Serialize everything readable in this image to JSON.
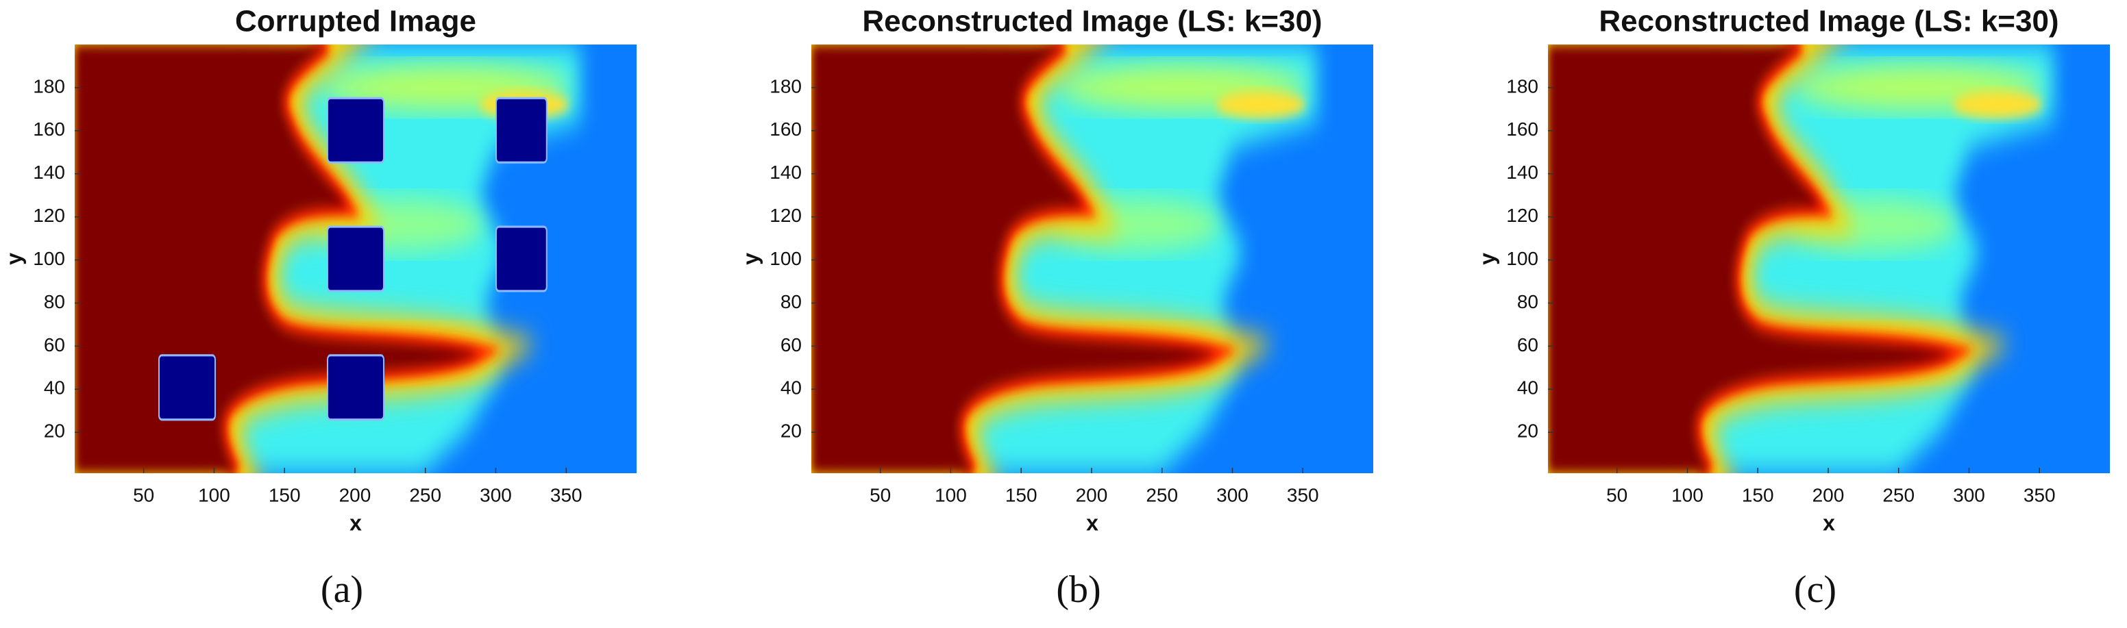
{
  "chart_data": [
    {
      "type": "image",
      "title": "Corrupted Image",
      "xlabel": "x",
      "ylabel": "y",
      "xlim": [
        1,
        400
      ],
      "ylim": [
        1,
        200
      ],
      "xticks": [
        50,
        100,
        150,
        200,
        250,
        300,
        350
      ],
      "yticks": [
        20,
        40,
        60,
        80,
        100,
        120,
        140,
        160,
        180
      ],
      "caption": "(a)"
    },
    {
      "type": "image",
      "title": "Reconstructed Image (LS: k=30)",
      "xlabel": "x",
      "ylabel": "y",
      "xlim": [
        1,
        400
      ],
      "ylim": [
        1,
        200
      ],
      "xticks": [
        50,
        100,
        150,
        200,
        250,
        300,
        350
      ],
      "yticks": [
        20,
        40,
        60,
        80,
        100,
        120,
        140,
        160,
        180
      ],
      "caption": "(b)"
    },
    {
      "type": "image",
      "title": "Reconstructed Image (LS: k=30)",
      "xlabel": "x",
      "ylabel": "y",
      "xlim": [
        1,
        400
      ],
      "ylim": [
        1,
        200
      ],
      "xticks": [
        50,
        100,
        150,
        200,
        250,
        300,
        350
      ],
      "yticks": [
        20,
        40,
        60,
        80,
        100,
        120,
        140,
        160,
        180
      ],
      "caption": "(c)"
    }
  ]
}
